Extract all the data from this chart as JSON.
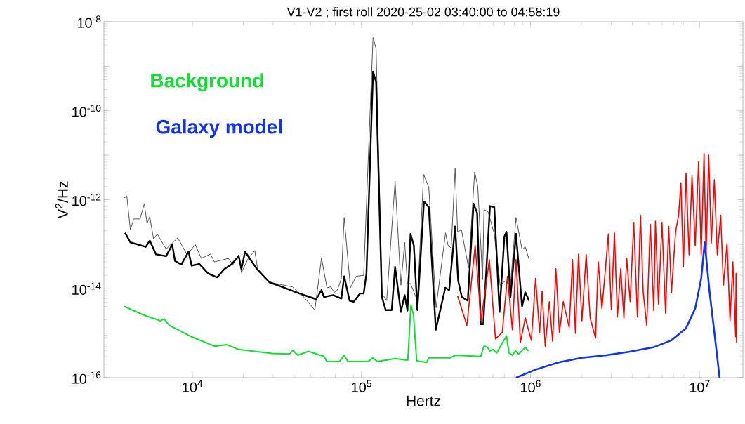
{
  "chart_data": {
    "type": "line",
    "title": "V1-V2 ; first roll 2020-25-02 03:40:00 to 04:58:19",
    "xlabel": "Hertz",
    "ylabel": "V$^{2}$/Hz",
    "log": "xy",
    "grid": false,
    "legend": false,
    "marker": "none",
    "line_style": "solid",
    "xlim": [
      3000,
      18000000
    ],
    "ylim": [
      1e-16,
      1e-08
    ],
    "xticks": [
      {
        "value": 10000,
        "label": "10$^{4}$"
      },
      {
        "value": 100000,
        "label": "10$^{5}$"
      },
      {
        "value": 1000000,
        "label": "10$^{6}$"
      },
      {
        "value": 10000000,
        "label": "10$^{7}$"
      }
    ],
    "yticks": [
      {
        "value": 1e-16,
        "label": "10$^{-16}$"
      },
      {
        "value": 1e-15,
        "label": null
      },
      {
        "value": 1e-14,
        "label": "10$^{-14}$"
      },
      {
        "value": 1e-13,
        "label": null
      },
      {
        "value": 1e-12,
        "label": "10$^{-12}$"
      },
      {
        "value": 1e-11,
        "label": null
      },
      {
        "value": 1e-10,
        "label": "10$^{-10}$"
      },
      {
        "value": 1e-09,
        "label": null
      },
      {
        "value": 1e-08,
        "label": "10$^{-8}$"
      }
    ],
    "series": [
      {
        "color": "#555555",
        "x": [
          3960,
          4100,
          4300,
          4500,
          4900,
          5200,
          5400,
          5600,
          5900,
          6200,
          7000,
          8200,
          9300,
          10400,
          11300,
          12800,
          13500,
          16300,
          17400,
          18800,
          19500,
          21400,
          23400,
          24300,
          28500,
          39000,
          45000,
          53000,
          58000,
          62500,
          66000,
          69000,
          72000,
          76000,
          79000,
          86000,
          93000,
          103000,
          117000,
          122000,
          132000,
          141000,
          158000,
          171000,
          180000,
          187000,
          195000,
          214000,
          233000,
          250000,
          276000,
          314000,
          324000,
          339000,
          358000,
          370000,
          390000,
          430000,
          467000,
          487000,
          520000,
          530000,
          560000,
          610000,
          660000,
          710000,
          760000,
          820000,
          890000,
          930000,
          980000
        ],
        "values": [
          1.1e-12,
          1.2e-12,
          2.1e-13,
          3.7e-13,
          3.7e-13,
          8.1e-13,
          2.9e-13,
          4.2e-13,
          1.3e-13,
          1.7e-13,
          7.8e-14,
          1.4e-13,
          5.8e-14,
          9.8e-14,
          4.8e-14,
          6e-14,
          4e-14,
          4.8e-14,
          3.5e-14,
          5.8e-14,
          2.3e-14,
          4.8e-14,
          7.2e-14,
          2.8e-14,
          1.4e-14,
          1.1e-14,
          6.9e-15,
          3.3e-15,
          4.9e-14,
          1.05e-14,
          1.1e-14,
          8.3e-15,
          9.3e-15,
          1.7e-14,
          4e-13,
          1.05e-14,
          1.9e-14,
          2e-14,
          4.4e-09,
          2.5e-09,
          7.8e-15,
          5.4e-15,
          2.6e-12,
          1.2e-14,
          1.1e-13,
          1.3e-14,
          1.3e-14,
          5.4e-15,
          3.7e-12,
          1.9e-12,
          3.7e-15,
          1.8e-13,
          9.8e-14,
          8.1e-14,
          5e-12,
          1.9e-13,
          2.1e-13,
          2.9e-14,
          4.2e-12,
          2e-12,
          1.6e-14,
          6e-13,
          5.4e-13,
          1.7e-13,
          1.2e-14,
          1.5e-14,
          1.2e-14,
          4e-13,
          7.6e-14,
          8.7e-14,
          4.5e-14
        ]
      },
      {
        "color": "#000000",
        "x": [
          4000,
          4300,
          5300,
          5600,
          6100,
          7000,
          7600,
          7900,
          8600,
          9500,
          9900,
          11000,
          12400,
          14000,
          15500,
          17000,
          18800,
          19500,
          20500,
          24000,
          28500,
          35000,
          43000,
          54000,
          58000,
          60000,
          68000,
          76000,
          79000,
          85000,
          90000,
          98000,
          103000,
          107000,
          117000,
          122000,
          132000,
          139000,
          151000,
          158000,
          171000,
          180000,
          187000,
          195000,
          204000,
          214000,
          234000,
          250000,
          275000,
          313000,
          330000,
          358000,
          373000,
          392000,
          425000,
          460000,
          483000,
          507000,
          525000,
          575000,
          610000,
          655000,
          700000,
          720000,
          760000,
          820000,
          890000,
          930000,
          980000
        ],
        "values": [
          1.8e-13,
          1.1e-13,
          8.7e-14,
          1.2e-13,
          5.9e-14,
          5.4e-14,
          9.8e-14,
          4.2e-14,
          3.5e-14,
          6.8e-14,
          3.3e-14,
          3.6e-14,
          2.2e-14,
          1.8e-14,
          2.8e-14,
          3.5e-14,
          5.4e-14,
          2.8e-14,
          6.8e-14,
          2.8e-14,
          1.4e-14,
          1.05e-14,
          7.8e-15,
          5.8e-15,
          9.3e-15,
          6.5e-15,
          7.2e-15,
          6e-15,
          1.9e-14,
          5.4e-15,
          5.1e-15,
          7.8e-15,
          7.8e-15,
          2.2e-14,
          7.6e-10,
          4.4e-10,
          6.5e-15,
          3.3e-15,
          3.3e-15,
          3.1e-14,
          3e-15,
          7.2e-15,
          3.2e-15,
          1.7e-13,
          9.3e-14,
          3.3e-15,
          9.1e-13,
          6.8e-13,
          1.2e-15,
          1.05e-14,
          9.3e-15,
          2.5e-13,
          1.5e-14,
          6.5e-15,
          5.4e-15,
          8.1e-13,
          5e-13,
          1.6e-15,
          1.6e-15,
          7.2e-13,
          6.8e-13,
          3e-15,
          1.5e-13,
          1.9e-13,
          6.5e-15,
          1.7e-13,
          4e-15,
          8.3e-15,
          5.4e-15
        ]
      },
      {
        "name": "Background",
        "color": "#11dd33",
        "x": [
          3960,
          4500,
          5400,
          6500,
          6800,
          7300,
          9900,
          13500,
          16000,
          18800,
          29500,
          37500,
          39300,
          42000,
          48500,
          60000,
          62500,
          74000,
          79000,
          83000,
          109000,
          117000,
          124000,
          158000,
          182000,
          188000,
          196000,
          203000,
          212000,
          243000,
          250000,
          335000,
          360000,
          507000,
          530000,
          550000,
          575000,
          600000,
          630000,
          720000,
          745000,
          780000,
          815000,
          850000,
          930000,
          970000
        ],
        "values": [
          4e-15,
          3.2e-15,
          2.4e-15,
          1.9e-15,
          2.1e-15,
          1.5e-15,
          8.3e-16,
          5.1e-16,
          5.5e-16,
          4.3e-16,
          3.5e-16,
          3.4e-16,
          4.1e-16,
          3.2e-16,
          3.9e-16,
          3e-16,
          2.3e-16,
          2.3e-16,
          3.2e-16,
          2.3e-16,
          2.3e-16,
          2.8e-16,
          2.3e-16,
          2.7e-16,
          2.5e-16,
          2.5e-16,
          4.3e-15,
          2.6e-15,
          2.4e-16,
          2.2e-16,
          2.8e-16,
          2.8e-16,
          3.2e-16,
          3e-16,
          5.1e-16,
          5e-16,
          4e-16,
          4.3e-16,
          3.6e-16,
          8.7e-16,
          3.6e-16,
          3.2e-16,
          4e-16,
          3.4e-16,
          4.8e-16,
          4e-16
        ]
      },
      {
        "color": "#ff0000",
        "x": [
          370000,
          420000,
          470000,
          510000,
          570000,
          620000,
          680000,
          730000,
          780000,
          820000,
          870000,
          930000,
          1010000,
          1070000,
          1130000,
          1170000,
          1220000,
          1290000,
          1350000,
          1410000,
          1480000,
          1560000,
          1690000,
          1770000,
          1840000,
          1920000,
          2010000,
          2130000,
          2250000,
          2420000,
          2510000,
          2640000,
          2770000,
          2880000,
          3000000,
          3130000,
          3260000,
          3410000,
          3560000,
          3700000,
          3880000,
          4070000,
          4280000,
          4460000,
          4630000,
          4860000,
          5100000,
          5350000,
          5470000,
          5700000,
          5980000,
          6280000,
          6550000,
          6800000,
          7200000,
          7500000,
          7740000,
          8000000,
          8300000,
          8650000,
          9000000,
          9400000,
          9850000,
          10200000,
          10600000,
          10900000,
          11300000,
          11700000,
          12200000,
          12700000,
          13300000,
          13800000,
          14500000,
          15100000,
          15700000,
          16300000,
          16400000,
          16500000
        ],
        "values": [
          6.9e-15,
          1.5e-15,
          9.3e-14,
          1.9e-15,
          4.5e-14,
          7.4e-16,
          1.05e-15,
          1.9e-14,
          1.2e-15,
          4.5e-14,
          6.2e-16,
          2.2e-15,
          6.9e-16,
          1.7e-14,
          1.05e-15,
          8.7e-15,
          5.1e-16,
          5.1e-15,
          6.5e-16,
          2.8e-14,
          1.05e-15,
          5.1e-15,
          1.35e-15,
          4.5e-14,
          1e-15,
          6e-14,
          1.9e-15,
          5.8e-14,
          2.2e-15,
          7.8e-16,
          4e-14,
          3.6e-15,
          2.8e-14,
          1.7e-13,
          3.4e-15,
          1.8e-13,
          2.3e-15,
          2.8e-14,
          2.2e-15,
          4.8e-14,
          5.1e-15,
          3.1e-13,
          2.3e-15,
          4.5e-13,
          8.3e-15,
          1.5e-15,
          2.8e-13,
          3.2e-15,
          3.3e-13,
          4.5e-15,
          3.1e-13,
          2.8e-15,
          2.5e-13,
          8.3e-15,
          1.9e-13,
          4.5e-13,
          2.4e-12,
          3.1e-14,
          3.9e-12,
          5.8e-14,
          3.5e-12,
          9.3e-14,
          7.2e-12,
          5.8e-14,
          1.1e-11,
          5.8e-14,
          1e-11,
          1.05e-13,
          2.8e-12,
          5.8e-14,
          4.5e-13,
          1.2e-14,
          1.05e-13,
          1.9e-15,
          4e-14,
          8.3e-16,
          2.2e-14,
          6.2e-16
        ]
      },
      {
        "name": "Galaxy model",
        "color": "#1133ee",
        "x": [
          820000,
          1060000,
          1460000,
          2000000,
          2800000,
          3800000,
          5300000,
          6800000,
          8300000,
          9400000,
          10200000,
          10700000,
          11400000,
          12200000,
          13100000
        ],
        "values": [
          1e-16,
          1.5e-16,
          2.2e-16,
          2.8e-16,
          3.2e-16,
          3.8e-16,
          4.8e-16,
          6.9e-16,
          1.3e-15,
          3.6e-15,
          1.7e-14,
          1.1e-13,
          9.3e-15,
          1.05e-15,
          1e-16
        ]
      }
    ]
  }
}
